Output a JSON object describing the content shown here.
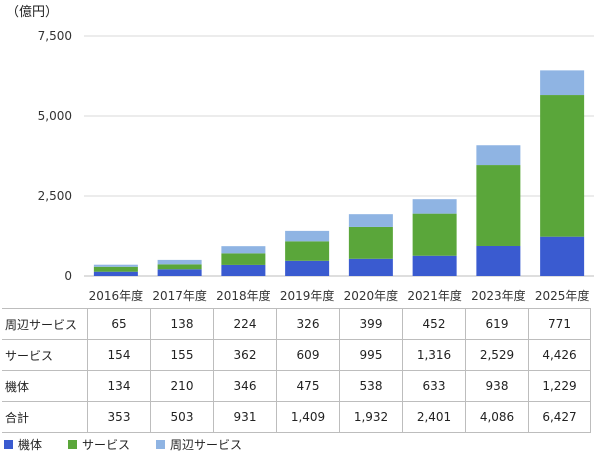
{
  "chart_data": {
    "type": "bar",
    "stacked": true,
    "unit_label": "（億円）",
    "categories": [
      "2016年度",
      "2017年度",
      "2018年度",
      "2019年度",
      "2020年度",
      "2021年度",
      "2023年度",
      "2025年度"
    ],
    "series": [
      {
        "name": "機体",
        "color": "#3a5bd0",
        "values": [
          134,
          210,
          346,
          475,
          538,
          633,
          938,
          1229
        ]
      },
      {
        "name": "サービス",
        "color": "#5aa63a",
        "values": [
          154,
          155,
          362,
          609,
          995,
          1316,
          2529,
          4426
        ]
      },
      {
        "name": "周辺サービス",
        "color": "#8fb4e3",
        "values": [
          65,
          138,
          224,
          326,
          399,
          452,
          619,
          771
        ]
      }
    ],
    "ylim": [
      0,
      7500
    ],
    "yticks": [
      0,
      2500,
      5000,
      7500
    ],
    "ytick_labels": [
      "0",
      "2,500",
      "5,000",
      "7,500"
    ],
    "grid": true
  },
  "table": {
    "rows": [
      {
        "label": "周辺サービス",
        "values": [
          "65",
          "138",
          "224",
          "326",
          "399",
          "452",
          "619",
          "771"
        ]
      },
      {
        "label": "サービス",
        "values": [
          "154",
          "155",
          "362",
          "609",
          "995",
          "1,316",
          "2,529",
          "4,426"
        ]
      },
      {
        "label": "機体",
        "values": [
          "134",
          "210",
          "346",
          "475",
          "538",
          "633",
          "938",
          "1,229"
        ]
      },
      {
        "label": "合計",
        "values": [
          "353",
          "503",
          "931",
          "1,409",
          "1,932",
          "2,401",
          "4,086",
          "6,427"
        ]
      }
    ]
  },
  "legend": [
    {
      "name": "機体",
      "color": "#3a5bd0"
    },
    {
      "name": "サービス",
      "color": "#5aa63a"
    },
    {
      "name": "周辺サービス",
      "color": "#8fb4e3"
    }
  ]
}
